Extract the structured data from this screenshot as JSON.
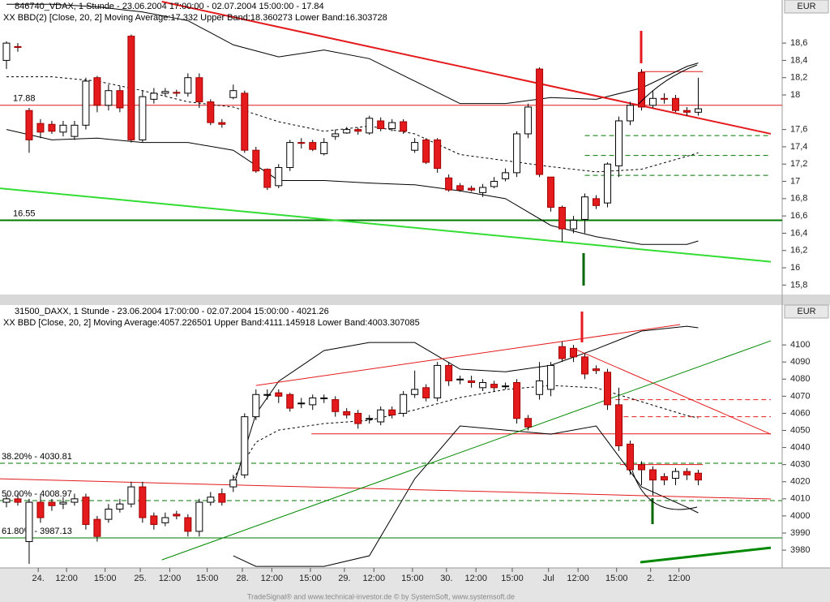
{
  "chart_data": [
    {
      "type": "candlestick",
      "title": "846740_VDAX, 1 Stunde - 23.06.2004 17:00:00 - 02.07.2004 15:00:00 - 17.84",
      "subtitle": "XX BBD(2) [Close, 20, 2] Moving Average:17.332 Upper Band:18.360273 Lower Band:16.303728",
      "unit": "EUR",
      "up_color": "#ffffff",
      "down_color": "#e41a1c",
      "xlim": [
        -0.57,
        68.4
      ],
      "ylim": [
        15.7,
        19.08
      ],
      "yticks": [
        {
          "value": 15.8,
          "label": "15,8"
        },
        16,
        {
          "value": 16.2,
          "label": "16,2"
        },
        {
          "value": 16.4,
          "label": "16,4"
        },
        {
          "value": 16.6,
          "label": "16,6"
        },
        {
          "value": 16.8,
          "label": "16,8"
        },
        17,
        {
          "value": 17.2,
          "label": "17,2"
        },
        {
          "value": 17.4,
          "label": "17,4"
        },
        {
          "value": 17.6,
          "label": "17,6"
        },
        18,
        {
          "value": 18.2,
          "label": "18,2"
        },
        {
          "value": 18.4,
          "label": "18,4"
        },
        {
          "value": 18.6,
          "label": "18,6"
        }
      ],
      "open": [
        18.4,
        18.56,
        17.82,
        17.67,
        17.66,
        17.57,
        17.52,
        17.65,
        18.2,
        17.88,
        18.05,
        18.68,
        17.48,
        17.95,
        18.02,
        18.03,
        18.02,
        18.2,
        17.92,
        17.68,
        17.97,
        18.02,
        17.36,
        17.14,
        16.95,
        17.16,
        17.45,
        17.45,
        17.32,
        17.52,
        17.56,
        17.6,
        17.56,
        17.7,
        17.61,
        17.69,
        17.36,
        17.48,
        17.48,
        17.04,
        16.95,
        16.92,
        16.87,
        16.94,
        17.03,
        17.1,
        17.55,
        18.3,
        17.05,
        16.7,
        16.45,
        16.56,
        16.8,
        16.75,
        17.18,
        17.7,
        18.26,
        17.88,
        17.96,
        17.96,
        17.82,
        17.8
      ],
      "high": [
        18.62,
        18.6,
        17.85,
        17.72,
        17.7,
        17.7,
        17.7,
        18.2,
        18.22,
        18.12,
        18.1,
        18.7,
        18.05,
        18.08,
        18.08,
        18.06,
        18.25,
        18.25,
        17.95,
        17.72,
        18.12,
        18.05,
        17.4,
        17.15,
        17.2,
        17.48,
        17.5,
        17.48,
        17.5,
        17.6,
        17.63,
        17.62,
        17.76,
        17.74,
        17.72,
        17.72,
        17.5,
        17.5,
        17.5,
        17.08,
        16.98,
        16.95,
        16.97,
        17.05,
        17.15,
        17.58,
        17.9,
        18.32,
        17.05,
        16.72,
        16.6,
        16.86,
        16.84,
        17.22,
        17.75,
        17.92,
        18.3,
        18.05,
        18.02,
        18.0,
        17.86,
        18.2
      ],
      "low": [
        18.3,
        18.5,
        17.33,
        17.5,
        17.55,
        17.52,
        17.48,
        17.6,
        17.8,
        17.82,
        17.8,
        17.45,
        17.45,
        17.9,
        17.98,
        17.98,
        17.98,
        17.85,
        17.65,
        17.62,
        17.95,
        17.33,
        17.1,
        16.9,
        16.92,
        17.12,
        17.38,
        17.35,
        17.3,
        17.48,
        17.55,
        17.54,
        17.54,
        17.58,
        17.58,
        17.55,
        17.33,
        17.2,
        17.1,
        16.88,
        16.88,
        16.88,
        16.82,
        16.92,
        17.0,
        17.05,
        17.5,
        17.05,
        16.65,
        16.3,
        16.4,
        16.4,
        16.68,
        16.7,
        17.05,
        17.65,
        17.82,
        17.85,
        17.9,
        17.8,
        17.76,
        17.76
      ],
      "close": [
        18.6,
        18.55,
        17.48,
        17.57,
        17.58,
        17.65,
        17.65,
        18.16,
        17.88,
        18.05,
        17.85,
        17.48,
        17.98,
        18.02,
        18.04,
        18.02,
        18.2,
        17.92,
        17.68,
        17.66,
        18.05,
        17.36,
        17.12,
        16.93,
        17.16,
        17.45,
        17.44,
        17.37,
        17.45,
        17.55,
        17.6,
        17.58,
        17.73,
        17.61,
        17.68,
        17.58,
        17.45,
        17.22,
        17.15,
        16.9,
        16.9,
        16.9,
        16.93,
        17.0,
        17.1,
        17.55,
        17.86,
        17.08,
        16.7,
        16.45,
        16.55,
        16.82,
        16.72,
        17.2,
        17.7,
        17.88,
        17.86,
        17.96,
        17.95,
        17.82,
        17.8,
        17.84
      ],
      "indicators": [
        {
          "x": [
            0,
            4,
            8,
            12,
            16,
            20,
            24,
            28,
            32,
            36,
            40,
            44,
            48,
            52,
            56,
            60,
            61
          ],
          "values": [
            19.05,
            19.05,
            19.02,
            18.96,
            18.86,
            18.58,
            18.44,
            18.52,
            18.42,
            18.16,
            17.9,
            17.9,
            17.97,
            17.95,
            18.08,
            18.33,
            18.37
          ],
          "dash": false
        },
        {
          "x": [
            0,
            4,
            8,
            12,
            16,
            20,
            24,
            28,
            32,
            36,
            40,
            44,
            48,
            52,
            56,
            60,
            61
          ],
          "values": [
            17.6,
            17.48,
            17.5,
            17.45,
            17.45,
            17.36,
            17.01,
            17.01,
            16.98,
            16.96,
            16.89,
            16.8,
            16.49,
            16.36,
            16.27,
            16.27,
            16.31
          ],
          "dash": false
        },
        {
          "x": [
            0,
            4,
            8,
            12,
            16,
            20,
            24,
            28,
            32,
            36,
            40,
            44,
            48,
            52,
            56,
            60,
            61
          ],
          "values": [
            18.21,
            18.21,
            18.16,
            18.05,
            17.92,
            17.86,
            17.69,
            17.58,
            17.64,
            17.55,
            17.31,
            17.24,
            17.17,
            17.11,
            17.14,
            17.29,
            17.33
          ],
          "dash": true
        }
      ],
      "trendlines": [
        {
          "x": [
            13.7,
            67.4
          ],
          "values": [
            19.08,
            17.55
          ],
          "color": "#e41a1c",
          "width": 2
        },
        {
          "x": [
            -0.57,
            67.4
          ],
          "values": [
            16.92,
            16.07
          ],
          "color": "#33dd33",
          "width": 2
        }
      ],
      "levels": [
        {
          "value": 17.88,
          "color": "#e41a1c",
          "dash": false,
          "from": -0.57,
          "to": 68.4,
          "show_label": true
        },
        {
          "value": 16.55,
          "color": "#007700",
          "dash": false,
          "from": -0.57,
          "to": 68.4,
          "show_label": true,
          "width": 2
        },
        {
          "value": 18.27,
          "color": "#e41a1c",
          "dash": false,
          "from": 55.9,
          "to": 61.4
        },
        {
          "value": 17.53,
          "color": "#007700",
          "dash": true,
          "from": 51,
          "to": 67.4
        },
        {
          "value": 17.3,
          "color": "#007700",
          "dash": true,
          "from": 51,
          "to": 67.4
        },
        {
          "value": 17.07,
          "color": "#007700",
          "dash": true,
          "from": 51,
          "to": 67.4
        }
      ]
    },
    {
      "type": "candlestick",
      "title": "31500_DAXX, 1 Stunde - 23.06.2004 17:00:00 - 02.07.2004 15:00:00 - 4021.26",
      "subtitle": "XX BBD [Close, 20, 2] Moving Average:4057.226501 Upper Band:4111.145918 Lower Band:4003.307085",
      "unit": "EUR",
      "up_color": "#ffffff",
      "down_color": "#e41a1c",
      "xlim": [
        -0.57,
        68.4
      ],
      "ylim": [
        3969.6,
        4123.3
      ],
      "yticks": [
        3980,
        3990,
        4000,
        4010,
        4020,
        4030,
        4040,
        4050,
        4060,
        4070,
        4080,
        4090,
        4100
      ],
      "xticks": [
        {
          "value": 2.8,
          "label": "24."
        },
        {
          "value": 5.3,
          "label": "12:00"
        },
        {
          "value": 8.7,
          "label": "15:00"
        },
        {
          "value": 11.8,
          "label": "25."
        },
        {
          "value": 14.4,
          "label": "12:00"
        },
        {
          "value": 17.7,
          "label": "15:00"
        },
        {
          "value": 20.8,
          "label": "28."
        },
        {
          "value": 23.4,
          "label": "12:00"
        },
        {
          "value": 26.8,
          "label": "15:00"
        },
        {
          "value": 29.8,
          "label": "29."
        },
        {
          "value": 32.4,
          "label": "12:00"
        },
        {
          "value": 35.8,
          "label": "15:00"
        },
        {
          "value": 38.8,
          "label": "30."
        },
        {
          "value": 41.4,
          "label": "12:00"
        },
        {
          "value": 44.6,
          "label": "15:00"
        },
        {
          "value": 47.8,
          "label": "Jul"
        },
        {
          "value": 50.4,
          "label": "12:00"
        },
        {
          "value": 53.8,
          "label": "15:00"
        },
        {
          "value": 56.8,
          "label": "2."
        },
        {
          "value": 59.3,
          "label": "12:00"
        }
      ],
      "open": [
        4008,
        4010,
        3985,
        4008,
        4008,
        4007,
        4008,
        4011,
        3998,
        3998,
        4004,
        4007,
        4017,
        4000,
        3996,
        4001,
        3999,
        3991,
        4008,
        4013,
        4017,
        4024,
        4058,
        4071,
        4072,
        4071,
        4066,
        4065,
        4069,
        4068,
        4061,
        4060,
        4057,
        4055,
        4062,
        4060,
        4071,
        4075,
        4069,
        4088,
        4080,
        4079,
        4075,
        4077,
        4076,
        4078,
        4057,
        4071,
        4074,
        4099,
        4098,
        4093,
        4086,
        4084,
        4065,
        4042,
        4030,
        4027,
        4023,
        4022,
        4026,
        4025
      ],
      "high": [
        4012,
        4013,
        4010,
        4012,
        4010,
        4011,
        4013,
        4013,
        4000,
        4007,
        4010,
        4020,
        4020,
        4002,
        4002,
        4003,
        4001,
        4010,
        4014,
        4016,
        4024,
        4060,
        4074,
        4074,
        4074,
        4072,
        4069,
        4071,
        4071,
        4070,
        4063,
        4062,
        4059,
        4064,
        4064,
        4073,
        4085,
        4077,
        4090,
        4090,
        4082,
        4082,
        4080,
        4079,
        4078,
        4080,
        4059,
        4090,
        4090,
        4102,
        4100,
        4095,
        4088,
        4086,
        4075,
        4044,
        4032,
        4029,
        4025,
        4028,
        4028,
        4027
      ],
      "low": [
        4005,
        4006,
        3972,
        3996,
        4003,
        4004,
        4006,
        3992,
        3985,
        3996,
        4002,
        4005,
        3996,
        3992,
        3994,
        3998,
        3988,
        3988,
        4006,
        4006,
        4014,
        4022,
        4056,
        4068,
        4066,
        4061,
        4063,
        4062,
        4066,
        4058,
        4057,
        4051,
        4054,
        4053,
        4057,
        4058,
        4069,
        4067,
        4067,
        4076,
        4077,
        4075,
        4073,
        4073,
        4074,
        4054,
        4050,
        4068,
        4070,
        4090,
        4090,
        4080,
        4083,
        4062,
        4038,
        4024,
        4018,
        4012,
        4018,
        4018,
        4021,
        4018
      ],
      "close": [
        4010,
        4008,
        4008,
        3999,
        4006,
        4008,
        4010,
        3995,
        3988,
        4004,
        4007,
        4017,
        3999,
        3995,
        3999,
        4000,
        3991,
        4008,
        4011,
        4008,
        4021,
        4058,
        4071,
        4071,
        4070,
        4063,
        4066,
        4069,
        4069,
        4061,
        4059,
        4054,
        4057,
        4062,
        4059,
        4071,
        4074,
        4069,
        4088,
        4079,
        4080,
        4078,
        4078,
        4075,
        4076,
        4057,
        4052,
        4079,
        4088,
        4092,
        4093,
        4083,
        4085,
        4065,
        4041,
        4027,
        4027,
        4021,
        4021,
        4026,
        4024,
        4021
      ],
      "indicators": [
        {
          "x": [
            20,
            22,
            24,
            28,
            32,
            36,
            40,
            44,
            48,
            52,
            56,
            60,
            61
          ],
          "values": [
            4017,
            4059.7,
            4078.7,
            4096.7,
            4101.4,
            4101.4,
            4085.8,
            4084.3,
            4088.1,
            4097.6,
            4108.1,
            4110.9,
            4110
          ],
          "dash": false
        },
        {
          "x": [
            20,
            22,
            24,
            28,
            32,
            36,
            40,
            44,
            48,
            52,
            56,
            60,
            61
          ],
          "values": [
            3976.7,
            3970.5,
            3970.5,
            3970.5,
            3976.7,
            4021.7,
            4052.6,
            4050.2,
            4047.8,
            4052.6,
            4017,
            4005.1,
            4001.8
          ],
          "dash": false
        },
        {
          "x": [
            20,
            22,
            24,
            28,
            32,
            36,
            40,
            44,
            48,
            52,
            56,
            60,
            61
          ],
          "values": [
            4021.7,
            4043.1,
            4050.2,
            4054,
            4055.9,
            4062,
            4069.2,
            4073.9,
            4076.3,
            4074.9,
            4066.8,
            4058.7,
            4057.3
          ],
          "dash": true
        }
      ],
      "trendlines": [
        {
          "x": [
            22,
            59.4
          ],
          "values": [
            4076.3,
            4111.9
          ],
          "color": "#e41a1c",
          "width": 1
        },
        {
          "x": [
            -0.57,
            67.4
          ],
          "values": [
            4021.7,
            4009.9
          ],
          "color": "#e41a1c",
          "width": 1
        },
        {
          "x": [
            50.1,
            67.4
          ],
          "values": [
            4097.6,
            4047.8
          ],
          "color": "#e41a1c",
          "width": 1
        },
        {
          "x": [
            13.7,
            67.4
          ],
          "values": [
            3974.3,
            4102.4
          ],
          "color": "#008800",
          "width": 1
        },
        {
          "x": [
            55.9,
            67.4
          ],
          "values": [
            3972.9,
            3981.4
          ],
          "color": "#008800",
          "width": 3
        }
      ],
      "levels": [
        {
          "value": 4030.81,
          "color": "#007700",
          "dash": true,
          "from": -0.57,
          "to": 68.4,
          "label": "38.20% - 4030.81"
        },
        {
          "value": 4008.97,
          "color": "#007700",
          "dash": true,
          "from": -0.57,
          "to": 68.4,
          "label": "50.00% - 4008.97"
        },
        {
          "value": 3987.13,
          "color": "#007700",
          "dash": false,
          "from": -0.57,
          "to": 68.4,
          "label": "61.80% - 3987.13"
        },
        {
          "value": 4048,
          "color": "#e41a1c",
          "dash": false,
          "from": 26.9,
          "to": 67.4
        },
        {
          "value": 4068,
          "color": "#e41a1c",
          "dash": true,
          "from": 53.7,
          "to": 67.4
        },
        {
          "value": 4058,
          "color": "#e41a1c",
          "dash": true,
          "from": 53.7,
          "to": 67.4
        },
        {
          "value": 4030,
          "color": "#e41a1c",
          "dash": false,
          "from": 54.1,
          "to": 61.4
        }
      ]
    }
  ],
  "footer": "TradeSignal® and www.technical-investor.de © by SystemSoft, www.systemsoft.de"
}
